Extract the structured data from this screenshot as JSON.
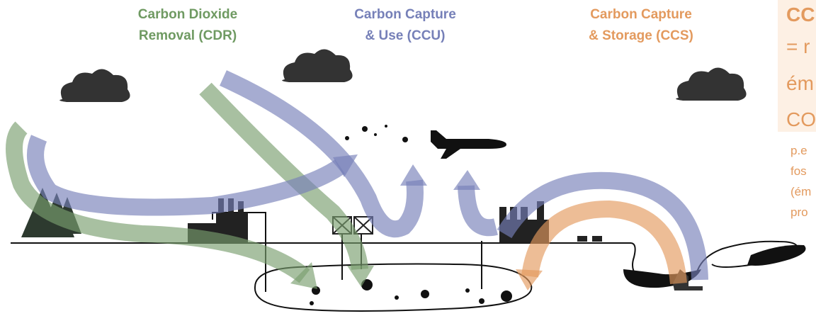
{
  "labels": [
    {
      "lines": [
        "Carbon Dioxide",
        "Removal (CDR)"
      ]
    },
    {
      "lines": [
        "Carbon Capture",
        "& Use (CCU)"
      ]
    },
    {
      "lines": [
        "Carbon Capture",
        "& Storage (CCS)"
      ]
    }
  ],
  "side_box": {
    "lines": [
      "CC",
      "= r",
      "ém",
      "CO"
    ]
  },
  "side_note": {
    "lines": [
      "p.e",
      "fos",
      "(ém",
      "pro"
    ]
  }
}
